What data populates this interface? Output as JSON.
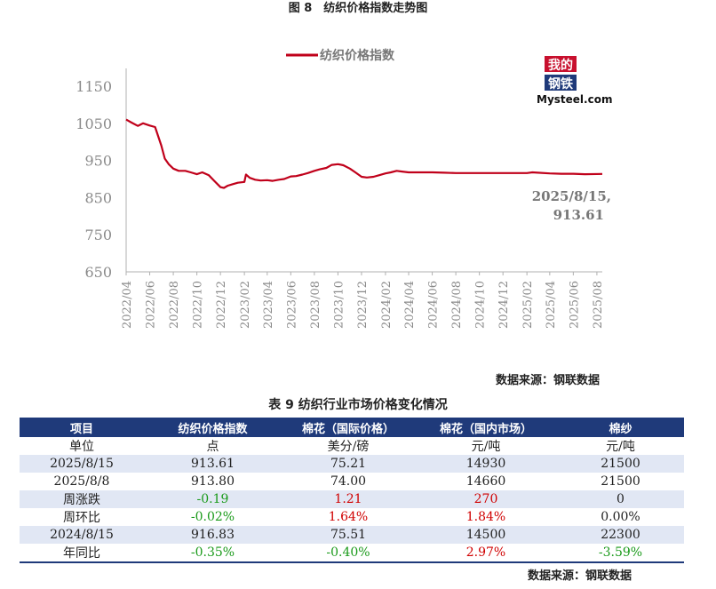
{
  "figure": {
    "title": "图 8　纺织价格指数走势图",
    "source": "数据来源：钢联数据"
  },
  "logo": {
    "line1": "我的",
    "line2": "钢铁",
    "text": "Mysteel.com"
  },
  "colors": {
    "line": "#c0001a",
    "header": "#1f3a7a",
    "stripe": "#e1e7f4",
    "up": "#d00000",
    "down": "#1a9a1a"
  },
  "chart_data": {
    "type": "line",
    "title": "",
    "xlabel": "",
    "ylabel": "",
    "ylim": [
      650,
      1150
    ],
    "yticks": [
      650,
      750,
      850,
      950,
      1050,
      1150
    ],
    "xticks": [
      "2022/04",
      "2022/06",
      "2022/08",
      "2022/10",
      "2022/12",
      "2023/02",
      "2023/04",
      "2023/06",
      "2023/08",
      "2023/10",
      "2023/12",
      "2024/02",
      "2024/04",
      "2024/06",
      "2024/08",
      "2024/10",
      "2024/12",
      "2025/02",
      "2025/04",
      "2025/06",
      "2025/08"
    ],
    "grid": false,
    "legend": "top-center",
    "annotation": {
      "line1": "2025/8/15,",
      "line2": "913.61"
    },
    "series": [
      {
        "name": "纺织价格指数",
        "x": [
          "2022/04/01",
          "2022/04/15",
          "2022/05/01",
          "2022/05/15",
          "2022/06/01",
          "2022/06/15",
          "2022/07/01",
          "2022/07/10",
          "2022/07/20",
          "2022/08/01",
          "2022/08/15",
          "2022/09/01",
          "2022/09/15",
          "2022/10/01",
          "2022/10/15",
          "2022/11/01",
          "2022/11/15",
          "2022/12/01",
          "2022/12/10",
          "2022/12/20",
          "2023/01/01",
          "2023/01/15",
          "2023/02/01",
          "2023/02/05",
          "2023/02/15",
          "2023/03/01",
          "2023/03/15",
          "2023/04/01",
          "2023/04/15",
          "2023/05/01",
          "2023/05/15",
          "2023/06/01",
          "2023/06/15",
          "2023/07/01",
          "2023/07/15",
          "2023/08/01",
          "2023/08/15",
          "2023/09/01",
          "2023/09/15",
          "2023/10/01",
          "2023/10/15",
          "2023/11/01",
          "2023/11/15",
          "2023/12/01",
          "2023/12/15",
          "2024/01/01",
          "2024/01/15",
          "2024/02/01",
          "2024/02/15",
          "2024/03/01",
          "2024/03/15",
          "2024/04/01",
          "2024/05/01",
          "2024/06/01",
          "2024/07/01",
          "2024/08/01",
          "2024/09/01",
          "2024/10/01",
          "2024/11/01",
          "2024/12/01",
          "2025/01/01",
          "2025/02/01",
          "2025/02/15",
          "2025/03/01",
          "2025/04/01",
          "2025/05/01",
          "2025/06/01",
          "2025/07/01",
          "2025/08/15"
        ],
        "values": [
          1060,
          1052,
          1043,
          1050,
          1044,
          1040,
          990,
          955,
          940,
          928,
          922,
          922,
          918,
          913,
          918,
          910,
          895,
          878,
          876,
          882,
          886,
          890,
          892,
          912,
          903,
          898,
          896,
          897,
          895,
          898,
          900,
          907,
          908,
          912,
          916,
          922,
          926,
          930,
          938,
          940,
          937,
          928,
          918,
          906,
          904,
          906,
          910,
          915,
          918,
          922,
          920,
          918,
          918,
          918,
          917,
          916,
          916,
          916,
          916,
          916,
          916,
          916,
          918,
          917,
          915,
          914,
          914,
          913,
          913.61
        ]
      }
    ]
  },
  "table": {
    "title": "表 9 纺织行业市场价格变化情况",
    "source": "数据来源：钢联数据",
    "headers": [
      "项目",
      "纺织价格指数",
      "棉花（国际价格）",
      "棉花（国内市场）",
      "棉纱"
    ],
    "rows": [
      {
        "cells": [
          "单位",
          "点",
          "美分/磅",
          "元/吨",
          "元/吨"
        ],
        "tones": [
          "",
          "",
          "",
          "",
          ""
        ]
      },
      {
        "cells": [
          "2025/8/15",
          "913.61",
          "75.21",
          "14930",
          "21500"
        ],
        "tones": [
          "",
          "",
          "",
          "",
          ""
        ]
      },
      {
        "cells": [
          "2025/8/8",
          "913.80",
          "74.00",
          "14660",
          "21500"
        ],
        "tones": [
          "",
          "",
          "",
          "",
          ""
        ]
      },
      {
        "cells": [
          "周涨跌",
          "-0.19",
          "1.21",
          "270",
          "0"
        ],
        "tones": [
          "",
          "neg",
          "pos",
          "pos",
          ""
        ]
      },
      {
        "cells": [
          "周环比",
          "-0.02%",
          "1.64%",
          "1.84%",
          "0.00%"
        ],
        "tones": [
          "",
          "neg",
          "pos",
          "pos",
          ""
        ]
      },
      {
        "cells": [
          "2024/8/15",
          "916.83",
          "75.51",
          "14500",
          "22300"
        ],
        "tones": [
          "",
          "",
          "",
          "",
          ""
        ]
      },
      {
        "cells": [
          "年同比",
          "-0.35%",
          "-0.40%",
          "2.97%",
          "-3.59%"
        ],
        "tones": [
          "",
          "neg",
          "neg",
          "pos",
          "neg"
        ]
      }
    ]
  }
}
